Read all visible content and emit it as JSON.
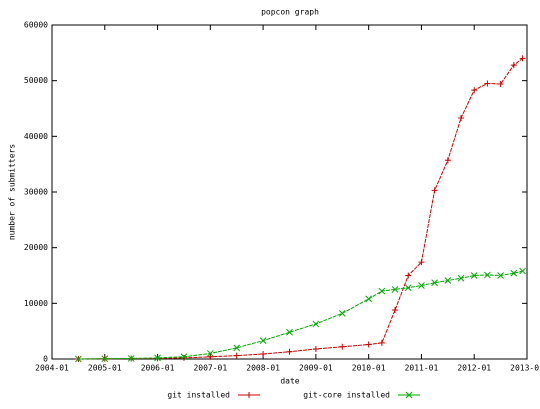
{
  "chart_data": {
    "type": "line",
    "title": "popcon graph",
    "x_label": "date",
    "y_label": "number of submitters",
    "x": [
      "2004-07",
      "2005-01",
      "2005-07",
      "2006-01",
      "2006-07",
      "2007-01",
      "2007-07",
      "2008-01",
      "2008-07",
      "2009-01",
      "2009-07",
      "2010-01",
      "2010-04",
      "2010-07",
      "2010-10",
      "2011-01",
      "2011-04",
      "2011-07",
      "2011-10",
      "2012-01",
      "2012-04",
      "2012-07",
      "2012-10",
      "2012-12"
    ],
    "series": [
      {
        "name": "git installed",
        "color": "#cc0000",
        "marker": "+",
        "values": [
          0,
          50,
          80,
          120,
          200,
          400,
          600,
          900,
          1300,
          1800,
          2200,
          2600,
          2900,
          8800,
          15000,
          17400,
          30300,
          35700,
          43300,
          48300,
          49500,
          49400,
          52800,
          54000
        ]
      },
      {
        "name": "git-core installed",
        "color": "#00aa00",
        "marker": "x",
        "values": [
          0,
          50,
          100,
          200,
          400,
          1000,
          2000,
          3300,
          4800,
          6300,
          8200,
          10800,
          12200,
          12500,
          12800,
          13200,
          13700,
          14100,
          14500,
          15000,
          15100,
          15000,
          15400,
          15800
        ]
      }
    ],
    "xlim": [
      "2004-01",
      "2013-01"
    ],
    "xticks": [
      "2004-01",
      "2005-01",
      "2006-01",
      "2007-01",
      "2008-01",
      "2009-01",
      "2010-01",
      "2011-01",
      "2012-01",
      "2013-01"
    ],
    "ylim": [
      0,
      60000
    ],
    "yticks": [
      0,
      10000,
      20000,
      30000,
      40000,
      50000,
      60000
    ],
    "legend": "bottom"
  }
}
